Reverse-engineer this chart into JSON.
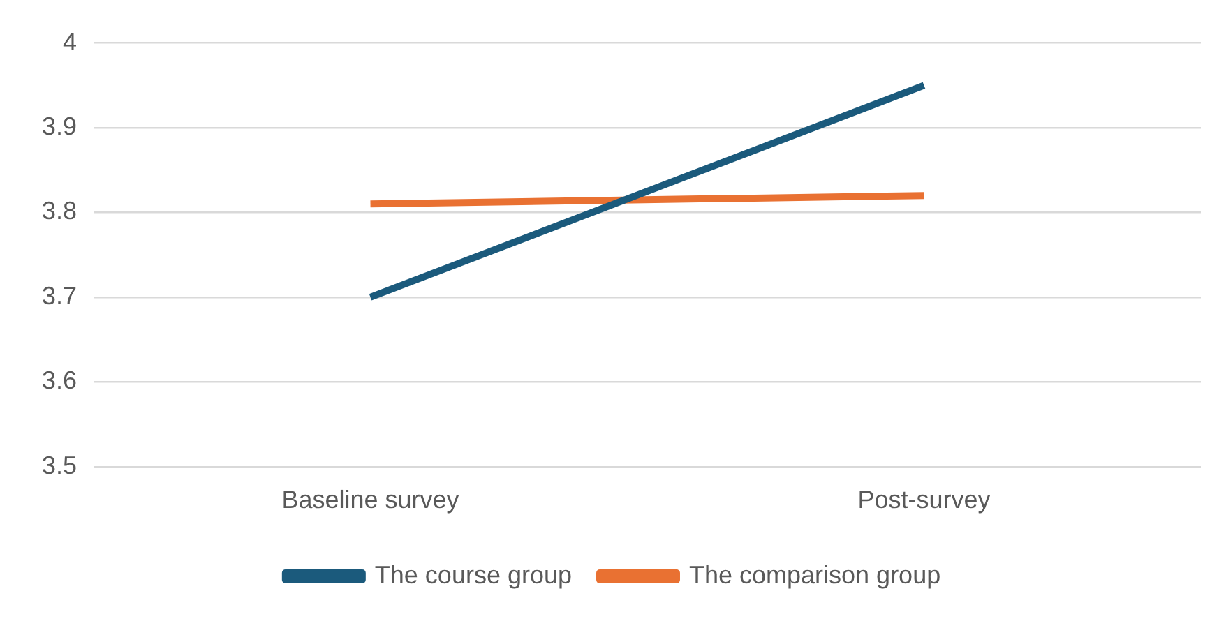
{
  "chart_data": {
    "type": "line",
    "categories": [
      "Baseline survey",
      "Post-survey"
    ],
    "series": [
      {
        "name": "The course group",
        "color": "#1b5a7c",
        "values": [
          3.7,
          3.95
        ]
      },
      {
        "name": "The comparison group",
        "color": "#e97132",
        "values": [
          3.81,
          3.82
        ]
      }
    ],
    "ylim": [
      3.5,
      4
    ],
    "yticks": [
      3.5,
      3.6,
      3.7,
      3.8,
      3.9,
      4
    ],
    "grid": "y",
    "legend": "bottom",
    "marker": "none"
  }
}
